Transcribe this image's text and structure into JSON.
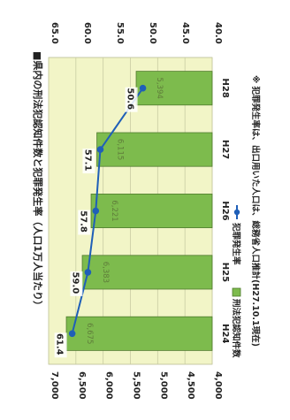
{
  "chart_data": {
    "type": "bar",
    "title": "■県内の刑法犯認知件数と犯罪発生率（人口1万人当たり）",
    "categories": [
      "H24",
      "H25",
      "H26",
      "H27",
      "H28"
    ],
    "series": [
      {
        "name": "刑法犯認知件数",
        "type": "bar",
        "axis": "left",
        "values": [
          6675,
          6383,
          6221,
          6115,
          5394
        ],
        "value_labels": [
          "6,675",
          "6,383",
          "6,221",
          "6,115",
          "5,394"
        ]
      },
      {
        "name": "犯罪発生率",
        "type": "line",
        "axis": "right",
        "values": [
          61.4,
          59.0,
          57.8,
          57.1,
          50.6
        ],
        "value_labels": [
          "61.4",
          "59.0",
          "57.8",
          "57.1",
          "50.6"
        ]
      }
    ],
    "left_axis": {
      "range": [
        4000,
        7000
      ],
      "ticks": [
        "4,000",
        "4,500",
        "5,000",
        "5,500",
        "6,000",
        "6,500",
        "7,000"
      ]
    },
    "right_axis": {
      "range": [
        40.0,
        65.0
      ],
      "ticks": [
        "40.0",
        "45.0",
        "50.0",
        "55.0",
        "60.0",
        "65.0"
      ]
    },
    "note": "※ 犯罪発生率は、出口用いた人口は、総務省人口推計(H27.10.1現在)",
    "colors": {
      "bar": "#7dbb4d",
      "bar_stroke": "#4f7a2e",
      "line": "#1f5fb8",
      "plot_bg": "#f2f5c7"
    },
    "grid": true,
    "legend_position": "bottom"
  }
}
